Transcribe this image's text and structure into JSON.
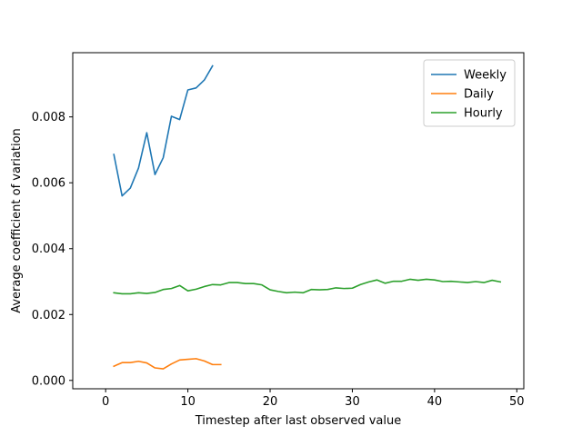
{
  "chart_data": {
    "type": "line",
    "xlabel": "Timestep after last observed value",
    "ylabel": "Average coefficient of variation",
    "xlim": [
      -4.0,
      50.85
    ],
    "ylim": [
      -0.000254,
      0.00995
    ],
    "xticks": [
      {
        "value": 0,
        "label": "0"
      },
      {
        "value": 10,
        "label": "10"
      },
      {
        "value": 20,
        "label": "20"
      },
      {
        "value": 30,
        "label": "30"
      },
      {
        "value": 40,
        "label": "40"
      },
      {
        "value": 50,
        "label": "50"
      }
    ],
    "yticks": [
      {
        "value": 0.0,
        "label": "0.000"
      },
      {
        "value": 0.002,
        "label": "0.002"
      },
      {
        "value": 0.004,
        "label": "0.004"
      },
      {
        "value": 0.006,
        "label": "0.006"
      },
      {
        "value": 0.008,
        "label": "0.008"
      }
    ],
    "grid": false,
    "legend_position": "top-right",
    "series": [
      {
        "name": "Weekly",
        "color": "#1f77b4",
        "x": [
          1,
          2,
          3,
          4,
          5,
          6,
          7,
          8,
          9,
          10,
          11,
          12,
          13
        ],
        "y": [
          0.00686,
          0.0056,
          0.00584,
          0.00645,
          0.00752,
          0.00625,
          0.00676,
          0.00802,
          0.00792,
          0.00882,
          0.00888,
          0.00912,
          0.00955
        ]
      },
      {
        "name": "Daily",
        "color": "#ff7f0e",
        "x": [
          1,
          2,
          3,
          4,
          5,
          6,
          7,
          8,
          9,
          10,
          11,
          12,
          13,
          14
        ],
        "y": [
          0.00043,
          0.00054,
          0.00054,
          0.00058,
          0.00053,
          0.00038,
          0.00035,
          0.0005,
          0.00062,
          0.00064,
          0.00066,
          0.00059,
          0.00048,
          0.00048
        ]
      },
      {
        "name": "Hourly",
        "color": "#2ca02c",
        "x": [
          1,
          2,
          3,
          4,
          5,
          6,
          7,
          8,
          9,
          10,
          11,
          12,
          13,
          14,
          15,
          16,
          17,
          18,
          19,
          20,
          21,
          22,
          23,
          24,
          25,
          26,
          27,
          28,
          29,
          30,
          31,
          32,
          33,
          34,
          35,
          36,
          37,
          38,
          39,
          40,
          41,
          42,
          43,
          44,
          45,
          46,
          47,
          48
        ],
        "y": [
          0.00266,
          0.00263,
          0.00263,
          0.00266,
          0.00264,
          0.00267,
          0.00276,
          0.00279,
          0.00288,
          0.00272,
          0.00277,
          0.00285,
          0.00291,
          0.0029,
          0.00297,
          0.00297,
          0.00294,
          0.00294,
          0.0029,
          0.00275,
          0.0027,
          0.00266,
          0.00268,
          0.00266,
          0.00276,
          0.00275,
          0.00276,
          0.00281,
          0.00279,
          0.0028,
          0.00291,
          0.00299,
          0.00305,
          0.00295,
          0.00301,
          0.00301,
          0.00307,
          0.00304,
          0.00307,
          0.00305,
          0.003,
          0.00301,
          0.00299,
          0.00297,
          0.003,
          0.00297,
          0.00304,
          0.00299
        ]
      }
    ]
  }
}
